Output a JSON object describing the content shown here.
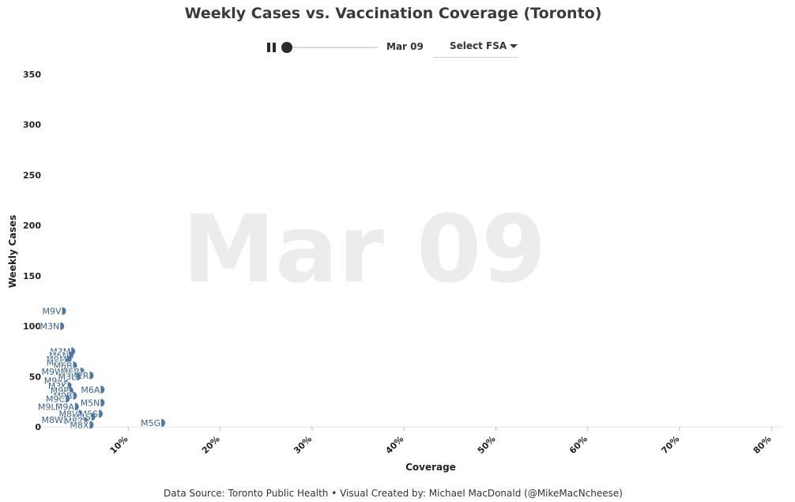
{
  "title": "Weekly Cases vs. Vaccination Coverage (Toronto)",
  "controls": {
    "current_date": "Mar 09",
    "fsa_select_label": "Select FSA",
    "slider_progress": 0
  },
  "footer": "Data Source: Toronto Public Health • Visual Created by: Michael MacDonald (@MikeMacNcheese)",
  "chart_data": {
    "type": "scatter",
    "title": "Weekly Cases vs. Vaccination Coverage (Toronto)",
    "xlabel": "Coverage",
    "ylabel": "Weekly Cases",
    "background_label": "Mar 09",
    "xlim": [
      0.0,
      0.81
    ],
    "ylim": [
      0,
      350
    ],
    "x_ticks": [
      0.1,
      0.2,
      0.3,
      0.4,
      0.5,
      0.6,
      0.7,
      0.8
    ],
    "x_tick_labels": [
      "10%",
      "20%",
      "30%",
      "40%",
      "50%",
      "60%",
      "70%",
      "80%"
    ],
    "y_ticks": [
      0,
      50,
      100,
      150,
      200,
      250,
      300,
      350
    ],
    "y_tick_labels": [
      "0",
      "50",
      "100",
      "150",
      "200",
      "250",
      "300",
      "350"
    ],
    "grid": false,
    "point_color": "#4e79a7",
    "points": [
      {
        "label": "M9V",
        "x": 0.028,
        "y": 115
      },
      {
        "label": "M3N",
        "x": 0.026,
        "y": 100
      },
      {
        "label": "M3M",
        "x": 0.038,
        "y": 75
      },
      {
        "label": "M6N",
        "x": 0.036,
        "y": 71
      },
      {
        "label": "M9M",
        "x": 0.034,
        "y": 67
      },
      {
        "label": "M6E",
        "x": 0.032,
        "y": 64
      },
      {
        "label": "M6B",
        "x": 0.04,
        "y": 61
      },
      {
        "label": "M9W",
        "x": 0.03,
        "y": 55
      },
      {
        "label": "M6B",
        "x": 0.048,
        "y": 55
      },
      {
        "label": "M2R",
        "x": 0.058,
        "y": 51
      },
      {
        "label": "M9R",
        "x": 0.03,
        "y": 46
      },
      {
        "label": "M3L",
        "x": 0.044,
        "y": 50
      },
      {
        "label": "M3K",
        "x": 0.034,
        "y": 41
      },
      {
        "label": "M6A",
        "x": 0.07,
        "y": 37
      },
      {
        "label": "M9P",
        "x": 0.036,
        "y": 36
      },
      {
        "label": "M9B",
        "x": 0.04,
        "y": 31
      },
      {
        "label": "M9C",
        "x": 0.032,
        "y": 28
      },
      {
        "label": "M5N",
        "x": 0.07,
        "y": 24
      },
      {
        "label": "M9L",
        "x": 0.022,
        "y": 20
      },
      {
        "label": "M9A",
        "x": 0.042,
        "y": 20
      },
      {
        "label": "M5S",
        "x": 0.068,
        "y": 13
      },
      {
        "label": "M8V",
        "x": 0.046,
        "y": 13
      },
      {
        "label": "M4S",
        "x": 0.06,
        "y": 10
      },
      {
        "label": "M8W",
        "x": 0.03,
        "y": 7
      },
      {
        "label": "M8Z",
        "x": 0.052,
        "y": 6
      },
      {
        "label": "M8X",
        "x": 0.058,
        "y": 2
      },
      {
        "label": "M5G",
        "x": 0.136,
        "y": 4
      }
    ]
  }
}
